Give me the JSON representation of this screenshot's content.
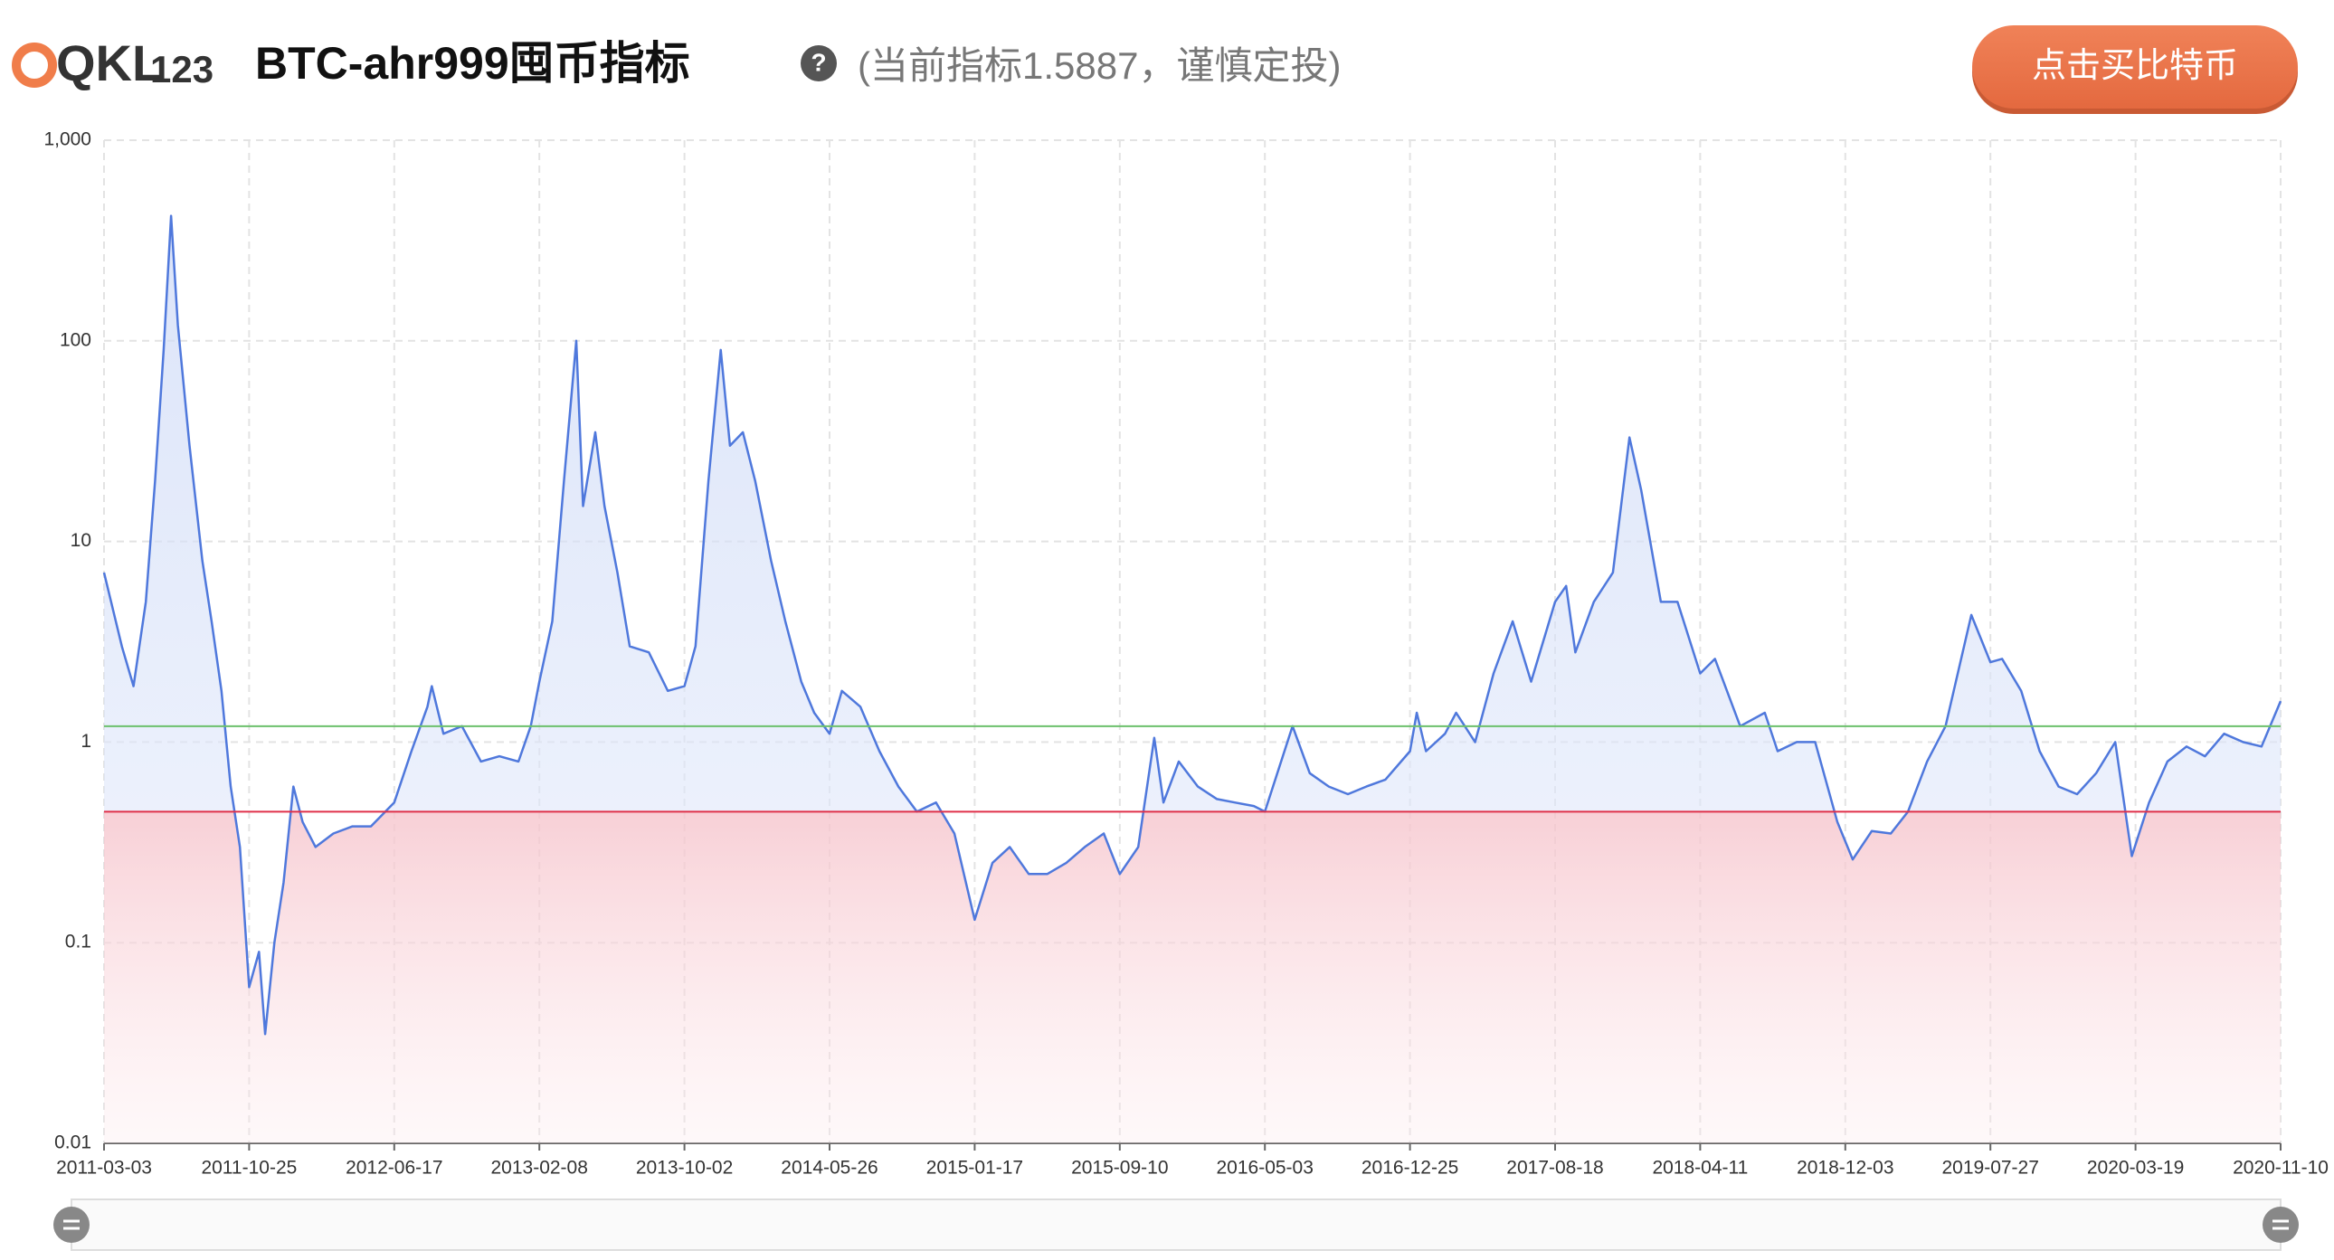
{
  "header": {
    "logo": "QKL",
    "logo_suffix": "123",
    "title": "BTC-ahr999囤币指标",
    "help": "?",
    "subtitle": "(当前指标1.5887，谨慎定投)",
    "button": "点击买比特币"
  },
  "chart_data": {
    "type": "line",
    "log_y": true,
    "grid": true,
    "x": [
      "2011-03-03",
      "2011-04-01",
      "2011-04-20",
      "2011-05-10",
      "2011-05-25",
      "2011-06-08",
      "2011-06-20",
      "2011-07-01",
      "2011-07-20",
      "2011-08-10",
      "2011-08-25",
      "2011-09-10",
      "2011-09-25",
      "2011-10-10",
      "2011-10-25",
      "2011-11-10",
      "2011-11-20",
      "2011-12-05",
      "2011-12-20",
      "2012-01-05",
      "2012-01-20",
      "2012-02-10",
      "2012-03-10",
      "2012-04-10",
      "2012-05-10",
      "2012-06-17",
      "2012-07-15",
      "2012-08-10",
      "2012-08-17",
      "2012-09-05",
      "2012-10-05",
      "2012-11-05",
      "2012-12-05",
      "2013-01-05",
      "2013-01-25",
      "2013-02-08",
      "2013-03-01",
      "2013-03-20",
      "2013-04-09",
      "2013-04-20",
      "2013-05-10",
      "2013-05-25",
      "2013-06-15",
      "2013-07-05",
      "2013-08-05",
      "2013-09-05",
      "2013-10-02",
      "2013-10-20",
      "2013-11-10",
      "2013-11-30",
      "2013-12-15",
      "2014-01-05",
      "2014-01-25",
      "2014-02-20",
      "2014-03-15",
      "2014-04-10",
      "2014-05-01",
      "2014-05-26",
      "2014-06-15",
      "2014-07-15",
      "2014-08-15",
      "2014-09-15",
      "2014-10-15",
      "2014-11-15",
      "2014-12-15",
      "2015-01-17",
      "2015-02-15",
      "2015-03-15",
      "2015-04-15",
      "2015-05-15",
      "2015-06-15",
      "2015-07-15",
      "2015-08-15",
      "2015-09-10",
      "2015-10-10",
      "2015-11-05",
      "2015-11-20",
      "2015-12-15",
      "2016-01-15",
      "2016-02-15",
      "2016-03-15",
      "2016-04-15",
      "2016-05-03",
      "2016-06-17",
      "2016-07-15",
      "2016-08-15",
      "2016-09-15",
      "2016-10-15",
      "2016-11-15",
      "2016-12-25",
      "2017-01-05",
      "2017-01-20",
      "2017-02-20",
      "2017-03-10",
      "2017-04-10",
      "2017-05-10",
      "2017-06-10",
      "2017-07-10",
      "2017-08-18",
      "2017-09-05",
      "2017-09-20",
      "2017-10-20",
      "2017-11-20",
      "2017-12-17",
      "2018-01-05",
      "2018-02-06",
      "2018-03-05",
      "2018-04-11",
      "2018-05-05",
      "2018-06-15",
      "2018-07-25",
      "2018-08-15",
      "2018-09-15",
      "2018-10-15",
      "2018-11-20",
      "2018-12-15",
      "2019-01-15",
      "2019-02-15",
      "2019-03-15",
      "2019-04-15",
      "2019-05-15",
      "2019-06-26",
      "2019-07-27",
      "2019-08-15",
      "2019-09-15",
      "2019-10-15",
      "2019-11-15",
      "2019-12-15",
      "2020-01-15",
      "2020-02-15",
      "2020-03-13",
      "2020-04-10",
      "2020-05-10",
      "2020-06-10",
      "2020-07-10",
      "2020-08-10",
      "2020-09-10",
      "2020-10-10",
      "2020-11-10"
    ],
    "series": [
      {
        "color": "#4f78dc",
        "values": [
          7,
          3,
          1.9,
          5,
          20,
          90,
          420,
          120,
          30,
          8,
          4,
          1.8,
          0.6,
          0.3,
          0.06,
          0.09,
          0.035,
          0.1,
          0.2,
          0.6,
          0.4,
          0.3,
          0.35,
          0.38,
          0.38,
          0.5,
          0.9,
          1.5,
          1.9,
          1.1,
          1.2,
          0.8,
          0.85,
          0.8,
          1.2,
          2,
          4,
          20,
          100,
          15,
          35,
          15,
          7,
          3,
          2.8,
          1.8,
          1.9,
          3,
          20,
          90,
          30,
          35,
          20,
          8,
          4,
          2,
          1.4,
          1.1,
          1.8,
          1.5,
          0.9,
          0.6,
          0.45,
          0.5,
          0.35,
          0.13,
          0.25,
          0.3,
          0.22,
          0.22,
          0.25,
          0.3,
          0.35,
          0.22,
          0.3,
          1.05,
          0.5,
          0.8,
          0.6,
          0.52,
          0.5,
          0.48,
          0.45,
          1.2,
          0.7,
          0.6,
          0.55,
          0.6,
          0.65,
          0.9,
          1.4,
          0.9,
          1.1,
          1.4,
          1.0,
          2.2,
          4,
          2,
          5,
          6,
          2.8,
          5,
          7,
          33,
          18,
          5,
          5,
          2.2,
          2.6,
          1.2,
          1.4,
          0.9,
          1.0,
          1.0,
          0.4,
          0.26,
          0.36,
          0.35,
          0.45,
          0.8,
          1.2,
          4.3,
          2.5,
          2.6,
          1.8,
          0.9,
          0.6,
          0.55,
          0.7,
          1.0,
          0.27,
          0.5,
          0.8,
          0.95,
          0.85,
          1.1,
          1.0,
          0.95,
          1.6
        ]
      }
    ],
    "reference_lines": [
      {
        "value": 1.2,
        "color": "#6cc06c"
      },
      {
        "value": 0.45,
        "color": "#e0304a"
      }
    ],
    "xlim": [
      "2011-03-03",
      "2020-11-10"
    ],
    "xticks": [
      "2011-03-03",
      "2011-10-25",
      "2012-06-17",
      "2013-02-08",
      "2013-10-02",
      "2014-05-26",
      "2015-01-17",
      "2015-09-10",
      "2016-05-03",
      "2016-12-25",
      "2017-08-18",
      "2018-04-11",
      "2018-12-03",
      "2019-07-27",
      "2020-03-19",
      "2020-11-10"
    ],
    "ylim": [
      0.01,
      1000
    ],
    "yticks": [
      0.01,
      0.1,
      1,
      10,
      100,
      {
        "value": 1000,
        "label": "1,000"
      }
    ]
  }
}
